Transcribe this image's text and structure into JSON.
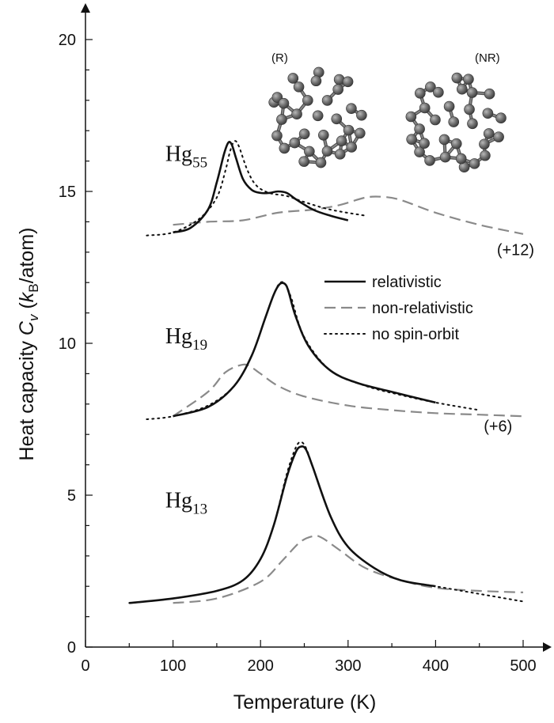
{
  "chart_data": {
    "type": "line",
    "xlabel": "Temperature (K)",
    "ylabel": {
      "prefix": "Heat capacity ",
      "c": "C",
      "v": "v",
      "open": " (",
      "k": "k",
      "b": "B",
      "unit": "/atom)"
    },
    "xlim": [
      0,
      520
    ],
    "ylim": [
      0,
      21
    ],
    "xticks": [
      0,
      100,
      200,
      300,
      400,
      500
    ],
    "yticks": [
      0,
      5,
      10,
      15,
      20
    ],
    "legend": {
      "position": "right-middle",
      "entries": [
        {
          "label": "relativistic",
          "style": "solid",
          "color": "#111111"
        },
        {
          "label": "non-relativistic",
          "style": "dashed",
          "color": "#8a8a8a"
        },
        {
          "label": "no spin-orbit",
          "style": "dotted",
          "color": "#111111"
        }
      ]
    },
    "groups": [
      {
        "label_main": "Hg",
        "label_sub": "55",
        "label_pos": [
          140,
          16.0
        ],
        "offset_label": "(+12)",
        "offset_pos": [
          470,
          12.9
        ],
        "series": [
          {
            "name": "relativistic",
            "x": [
              100,
              120,
              140,
              150,
              158,
              163,
              167,
              172,
              180,
              190,
              200,
              210,
              220,
              230,
              240,
              260,
              280,
              300
            ],
            "y": [
              13.65,
              13.8,
              14.4,
              15.3,
              16.2,
              16.6,
              16.55,
              16.1,
              15.4,
              15.05,
              14.95,
              14.95,
              15.0,
              14.95,
              14.75,
              14.4,
              14.2,
              14.05
            ]
          },
          {
            "name": "non-relativistic",
            "x": [
              100,
              140,
              180,
              220,
              260,
              290,
              320,
              340,
              360,
              400,
              450,
              500
            ],
            "y": [
              13.9,
              14.0,
              14.05,
              14.3,
              14.4,
              14.55,
              14.8,
              14.82,
              14.72,
              14.3,
              13.9,
              13.6
            ]
          },
          {
            "name": "no spin-orbit",
            "x": [
              70,
              100,
              130,
              150,
              160,
              165,
              170,
              175,
              185,
              195,
              210,
              230,
              250,
              280,
              320
            ],
            "y": [
              13.55,
              13.65,
              14.1,
              14.8,
              15.7,
              16.3,
              16.65,
              16.5,
              15.7,
              15.2,
              14.95,
              14.85,
              14.65,
              14.4,
              14.2
            ]
          }
        ]
      },
      {
        "label_main": "Hg",
        "label_sub": "19",
        "label_pos": [
          140,
          10.0
        ],
        "offset_label": "(+6)",
        "offset_pos": [
          455,
          7.1
        ],
        "series": [
          {
            "name": "relativistic",
            "x": [
              100,
              140,
              170,
              190,
              205,
              215,
              222,
              228,
              232,
              240,
              255,
              280,
              310,
              350,
              400
            ],
            "y": [
              7.6,
              7.9,
              8.6,
              9.6,
              10.8,
              11.6,
              11.95,
              11.95,
              11.7,
              10.9,
              9.9,
              9.1,
              8.7,
              8.4,
              8.05
            ]
          },
          {
            "name": "non-relativistic",
            "x": [
              100,
              140,
              160,
              180,
              190,
              200,
              220,
              250,
              300,
              350,
              400,
              450,
              500
            ],
            "y": [
              7.6,
              8.4,
              9.05,
              9.3,
              9.2,
              9.0,
              8.6,
              8.25,
              7.95,
              7.8,
              7.7,
              7.65,
              7.6
            ]
          },
          {
            "name": "no spin-orbit",
            "x": [
              70,
              100,
              140,
              170,
              190,
              205,
              215,
              222,
              228,
              235,
              250,
              280,
              320,
              360,
              400,
              450
            ],
            "y": [
              7.5,
              7.6,
              7.95,
              8.6,
              9.6,
              10.8,
              11.6,
              11.98,
              11.95,
              11.5,
              10.2,
              9.1,
              8.6,
              8.3,
              8.05,
              7.8
            ]
          }
        ]
      },
      {
        "label_main": "Hg",
        "label_sub": "13",
        "label_pos": [
          140,
          4.6
        ],
        "offset_label": "",
        "offset_pos": [
          0,
          0
        ],
        "series": [
          {
            "name": "relativistic",
            "x": [
              50,
              100,
              150,
              180,
              200,
              215,
              230,
              240,
              246,
              252,
              260,
              280,
              300,
              330,
              360,
              400
            ],
            "y": [
              1.45,
              1.6,
              1.85,
              2.2,
              2.9,
              4.0,
              5.6,
              6.4,
              6.6,
              6.5,
              5.9,
              4.3,
              3.3,
              2.6,
              2.2,
              2.0
            ]
          },
          {
            "name": "non-relativistic",
            "x": [
              100,
              150,
              200,
              225,
              245,
              260,
              270,
              290,
              320,
              360,
              400,
              450,
              500
            ],
            "y": [
              1.45,
              1.6,
              2.15,
              2.85,
              3.45,
              3.65,
              3.6,
              3.2,
              2.6,
              2.2,
              1.95,
              1.85,
              1.8
            ]
          },
          {
            "name": "no spin-orbit",
            "x": [
              50,
              100,
              150,
              180,
              200,
              215,
              230,
              240,
              246,
              252,
              260,
              280,
              300,
              330,
              360,
              400,
              450,
              500
            ],
            "y": [
              1.45,
              1.6,
              1.85,
              2.2,
              2.9,
              4.0,
              5.7,
              6.55,
              6.75,
              6.55,
              5.9,
              4.3,
              3.3,
              2.6,
              2.2,
              2.0,
              1.75,
              1.5
            ]
          }
        ]
      }
    ],
    "inset_labels": [
      "(R)",
      "(NR)"
    ]
  }
}
